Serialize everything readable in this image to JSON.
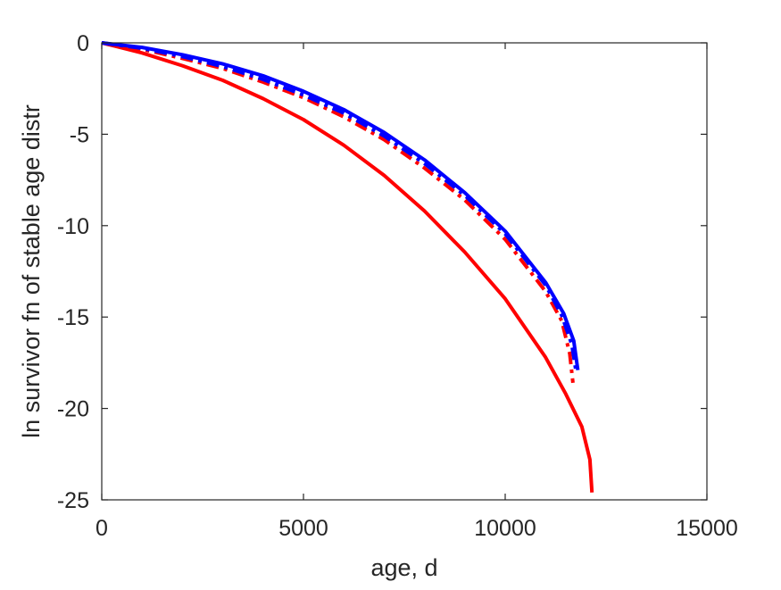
{
  "chart_data": {
    "type": "line",
    "title": "",
    "xlabel": "age, d",
    "ylabel": "ln survivor fn of stable age distr",
    "xlim": [
      0,
      15000
    ],
    "ylim": [
      -25,
      0
    ],
    "xticks": [
      0,
      5000,
      10000,
      15000
    ],
    "yticks": [
      0,
      -5,
      -10,
      -15,
      -20,
      -25
    ],
    "xtick_labels": [
      "0",
      "5000",
      "10000",
      "15000"
    ],
    "ytick_labels": [
      "0",
      "-5",
      "-10",
      "-15",
      "-20",
      "-25"
    ],
    "grid": false,
    "box": true,
    "series": [
      {
        "color": "#ff0000",
        "line_style": "solid",
        "x": [
          0,
          1000,
          2000,
          3000,
          4000,
          5000,
          6000,
          7000,
          8000,
          9000,
          10000,
          11000,
          11500,
          11900,
          12100,
          12150
        ],
        "y": [
          0,
          -0.55,
          -1.25,
          -2.05,
          -3.05,
          -4.2,
          -5.6,
          -7.25,
          -9.2,
          -11.45,
          -14.0,
          -17.2,
          -19.2,
          -21.0,
          -22.8,
          -24.6
        ]
      },
      {
        "color": "#ff0000",
        "line_style": "dashdot",
        "x": [
          0,
          1000,
          2000,
          3000,
          4000,
          5000,
          6000,
          7000,
          8000,
          9000,
          10000,
          11000,
          11400,
          11600,
          11680
        ],
        "y": [
          0,
          -0.35,
          -0.85,
          -1.4,
          -2.15,
          -3.0,
          -4.05,
          -5.3,
          -6.85,
          -8.6,
          -10.75,
          -13.6,
          -15.2,
          -17.0,
          -18.6
        ]
      },
      {
        "color": "#0000ff",
        "line_style": "dashdot",
        "x": [
          0,
          1000,
          2000,
          3000,
          4000,
          5000,
          6000,
          7000,
          8000,
          9000,
          10000,
          11000,
          11400,
          11650,
          11750
        ],
        "y": [
          0,
          -0.3,
          -0.75,
          -1.3,
          -2.0,
          -2.85,
          -3.85,
          -5.1,
          -6.6,
          -8.35,
          -10.45,
          -13.25,
          -14.9,
          -16.5,
          -17.9
        ]
      },
      {
        "color": "#0000ff",
        "line_style": "solid",
        "x": [
          0,
          1000,
          2000,
          3000,
          4000,
          5000,
          6000,
          7000,
          8000,
          9000,
          10000,
          11000,
          11450,
          11700,
          11800
        ],
        "y": [
          0,
          -0.25,
          -0.65,
          -1.15,
          -1.8,
          -2.65,
          -3.65,
          -4.9,
          -6.4,
          -8.2,
          -10.3,
          -13.1,
          -14.8,
          -16.3,
          -17.9
        ]
      }
    ]
  }
}
